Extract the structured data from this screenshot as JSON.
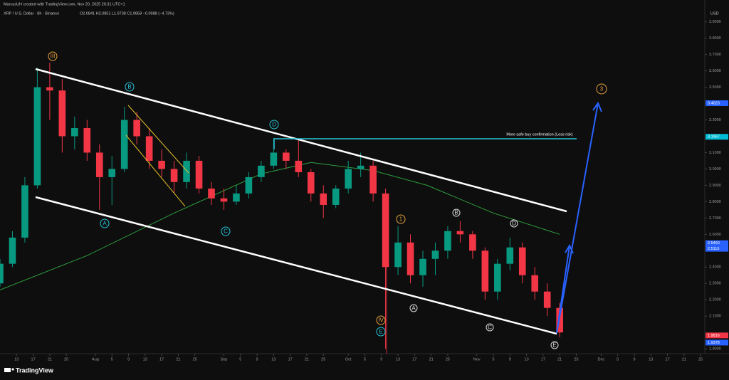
{
  "header": {
    "credit": "MarcusUH created with TradingView.com, Nov 20, 2025 20:31 UTC+1",
    "symbol": "XRP / U.S. Dollar · 8h · Binance",
    "ohlc": "O2.0841 H2.0851 L1.9738 C1.9858 −0.0988 (−4.73%)"
  },
  "currency": "USD",
  "brand": "TradingView",
  "chart_data": {
    "type": "candlestick",
    "x": [
      "2025-07-09",
      "2025-07-12",
      "2025-07-15",
      "2025-07-18",
      "2025-07-21",
      "2025-07-24",
      "2025-07-27",
      "2025-07-30",
      "2025-08-02",
      "2025-08-05",
      "2025-08-08",
      "2025-08-11",
      "2025-08-14",
      "2025-08-17",
      "2025-08-20",
      "2025-08-23",
      "2025-08-26",
      "2025-08-29",
      "2025-09-01",
      "2025-09-04",
      "2025-09-07",
      "2025-09-10",
      "2025-09-13",
      "2025-09-16",
      "2025-09-19",
      "2025-09-22",
      "2025-09-25",
      "2025-09-28",
      "2025-10-01",
      "2025-10-04",
      "2025-10-07",
      "2025-10-10",
      "2025-10-13",
      "2025-10-16",
      "2025-10-19",
      "2025-10-22",
      "2025-10-25",
      "2025-10-28",
      "2025-10-31",
      "2025-11-03",
      "2025-11-06",
      "2025-11-09",
      "2025-11-12",
      "2025-11-15",
      "2025-11-18",
      "2025-11-21"
    ],
    "open": [
      2.3,
      2.42,
      2.58,
      2.9,
      3.5,
      3.48,
      3.2,
      3.25,
      3.1,
      2.95,
      3.0,
      3.3,
      3.2,
      3.05,
      3.0,
      2.92,
      3.05,
      2.88,
      2.82,
      2.8,
      2.85,
      2.95,
      3.02,
      3.1,
      3.05,
      2.98,
      2.85,
      2.78,
      2.88,
      3.0,
      3.02,
      2.85,
      2.4,
      2.55,
      2.35,
      2.45,
      2.5,
      2.62,
      2.6,
      2.5,
      2.25,
      2.42,
      2.52,
      2.35,
      2.25,
      2.15
    ],
    "high": [
      2.45,
      2.62,
      2.95,
      3.62,
      3.65,
      3.55,
      3.32,
      3.3,
      3.15,
      3.08,
      3.38,
      3.35,
      3.25,
      3.12,
      3.05,
      3.1,
      3.08,
      2.92,
      2.88,
      2.9,
      2.98,
      3.05,
      3.19,
      3.12,
      3.18,
      3.0,
      2.9,
      2.9,
      3.05,
      3.1,
      3.05,
      2.88,
      2.65,
      2.6,
      2.5,
      2.55,
      2.65,
      2.68,
      2.62,
      2.52,
      2.45,
      2.58,
      2.55,
      2.4,
      2.3,
      2.18
    ],
    "low": [
      2.28,
      2.4,
      2.55,
      2.88,
      3.3,
      3.1,
      3.12,
      3.05,
      2.75,
      2.78,
      2.98,
      3.15,
      3.0,
      2.95,
      2.85,
      2.88,
      2.85,
      2.78,
      2.75,
      2.78,
      2.82,
      2.92,
      3.0,
      3.0,
      2.95,
      2.8,
      2.7,
      2.76,
      2.85,
      2.95,
      2.8,
      1.9,
      2.35,
      2.3,
      2.28,
      2.35,
      2.45,
      2.55,
      2.45,
      2.2,
      2.2,
      2.38,
      2.3,
      2.2,
      2.1,
      1.97
    ],
    "close": [
      2.42,
      2.58,
      2.9,
      3.5,
      3.48,
      3.2,
      3.25,
      3.1,
      2.95,
      3.0,
      3.3,
      3.2,
      3.05,
      3.0,
      2.92,
      3.05,
      2.88,
      2.82,
      2.8,
      2.85,
      2.95,
      3.02,
      3.1,
      3.05,
      2.98,
      2.85,
      2.78,
      2.88,
      3.0,
      3.02,
      2.85,
      2.4,
      2.55,
      2.35,
      2.45,
      2.5,
      2.62,
      2.6,
      2.5,
      2.25,
      2.42,
      2.52,
      2.35,
      2.25,
      2.15,
      2.0
    ],
    "up_color": "#089981",
    "down_color": "#f23645",
    "moving_average": {
      "color": "#2e9e3e",
      "x": [
        "2025-07-09",
        "2025-07-30",
        "2025-08-20",
        "2025-09-10",
        "2025-09-22",
        "2025-10-07",
        "2025-10-20",
        "2025-11-05",
        "2025-11-21"
      ],
      "values": [
        2.26,
        2.47,
        2.73,
        2.97,
        3.04,
        2.99,
        2.9,
        2.73,
        2.6
      ]
    },
    "xlim": [
      "2025-07-09",
      "2025-12-26"
    ],
    "ylim": [
      1.87,
      3.99
    ],
    "xticks": [
      {
        "value": "2025-07-13",
        "label": "13"
      },
      {
        "value": "2025-07-17",
        "label": "17"
      },
      {
        "value": "2025-07-21",
        "label": "21"
      },
      {
        "value": "2025-07-25",
        "label": "25"
      },
      {
        "value": "2025-08-01",
        "label": "Aug"
      },
      {
        "value": "2025-08-05",
        "label": "5"
      },
      {
        "value": "2025-08-09",
        "label": "9"
      },
      {
        "value": "2025-08-13",
        "label": "13"
      },
      {
        "value": "2025-08-17",
        "label": "17"
      },
      {
        "value": "2025-08-21",
        "label": "21"
      },
      {
        "value": "2025-08-25",
        "label": "25"
      },
      {
        "value": "2025-09-01",
        "label": "Sep"
      },
      {
        "value": "2025-09-05",
        "label": "5"
      },
      {
        "value": "2025-09-09",
        "label": "9"
      },
      {
        "value": "2025-09-13",
        "label": "13"
      },
      {
        "value": "2025-09-17",
        "label": "17"
      },
      {
        "value": "2025-09-21",
        "label": "21"
      },
      {
        "value": "2025-09-25",
        "label": "25"
      },
      {
        "value": "2025-10-01",
        "label": "Oct"
      },
      {
        "value": "2025-10-05",
        "label": "5"
      },
      {
        "value": "2025-10-09",
        "label": "9"
      },
      {
        "value": "2025-10-13",
        "label": "13"
      },
      {
        "value": "2025-10-17",
        "label": "17"
      },
      {
        "value": "2025-10-21",
        "label": "21"
      },
      {
        "value": "2025-10-25",
        "label": "25"
      },
      {
        "value": "2025-11-01",
        "label": "Nov"
      },
      {
        "value": "2025-11-05",
        "label": "5"
      },
      {
        "value": "2025-11-09",
        "label": "9"
      },
      {
        "value": "2025-11-13",
        "label": "13"
      },
      {
        "value": "2025-11-17",
        "label": "17"
      },
      {
        "value": "2025-11-21",
        "label": "21"
      },
      {
        "value": "2025-11-25",
        "label": "25"
      },
      {
        "value": "2025-12-01",
        "label": "Dec"
      },
      {
        "value": "2025-12-05",
        "label": "5"
      },
      {
        "value": "2025-12-09",
        "label": "9"
      },
      {
        "value": "2025-12-13",
        "label": "13"
      },
      {
        "value": "2025-12-17",
        "label": "17"
      },
      {
        "value": "2025-12-21",
        "label": "21"
      },
      {
        "value": "2025-12-25",
        "label": "25"
      }
    ],
    "yticks": [
      {
        "value": 1.9,
        "label": "1.9000"
      },
      {
        "value": 2.1,
        "label": "2.1000"
      },
      {
        "value": 2.2,
        "label": "2.2000"
      },
      {
        "value": 2.3,
        "label": "2.3000"
      },
      {
        "value": 2.4,
        "label": "2.4000"
      },
      {
        "value": 2.6,
        "label": "2.6000"
      },
      {
        "value": 2.7,
        "label": "2.7000"
      },
      {
        "value": 2.8,
        "label": "2.8000"
      },
      {
        "value": 2.9,
        "label": "2.9000"
      },
      {
        "value": 3.0,
        "label": "3.0000"
      },
      {
        "value": 3.1,
        "label": "3.1000"
      },
      {
        "value": 3.3,
        "label": "3.3000"
      },
      {
        "value": 3.5,
        "label": "3.5000"
      },
      {
        "value": 3.6,
        "label": "3.6000"
      },
      {
        "value": 3.7,
        "label": "3.7000"
      },
      {
        "value": 3.8,
        "label": "3.8000"
      },
      {
        "value": 3.9,
        "label": "3.9000"
      }
    ],
    "price_labels": [
      {
        "value": 3.4023,
        "label": "3.4023",
        "color": "#2962ff"
      },
      {
        "value": 3.1967,
        "label": "3.1967",
        "color": "#00bcd4"
      },
      {
        "value": 2.546,
        "label": "2.5460",
        "color": "#2962ff"
      },
      {
        "value": 2.5116,
        "label": "2.5116",
        "color": "#2962ff"
      },
      {
        "value": 1.9816,
        "label": "1.9816",
        "color": "#f23645"
      },
      {
        "value": 1.9378,
        "label": "1.9378",
        "color": "#2962ff"
      }
    ],
    "annotations": [
      "III",
      "B",
      "A",
      "C",
      "D",
      "1",
      "IV",
      "E",
      "3",
      "B",
      "D",
      "A",
      "C",
      "E",
      "More safe buy confirmation (Less risk)"
    ]
  }
}
